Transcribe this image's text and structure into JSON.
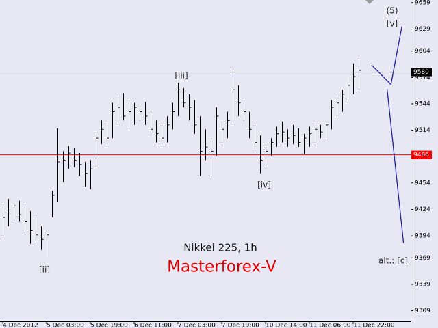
{
  "chart_data": {
    "type": "ohlc",
    "title": "Nikkei 225, 1h",
    "subtitle": "Masterforex-V",
    "annotations": [
      "[ii]",
      "[iii]",
      "[iv]",
      "(5)",
      "[v]",
      "alt.: [c]"
    ],
    "high": [
      9430,
      9436,
      9432,
      9434,
      9430,
      9422,
      9418,
      9405,
      9400,
      9445,
      9516,
      9490,
      9496,
      9494,
      9488,
      9478,
      9480,
      9512,
      9525,
      9522,
      9545,
      9552,
      9556,
      9548,
      9545,
      9542,
      9546,
      9535,
      9525,
      9520,
      9530,
      9545,
      9568,
      9562,
      9555,
      9548,
      9530,
      9515,
      9505,
      9540,
      9525,
      9535,
      9586,
      9565,
      9548,
      9535,
      9520,
      9508,
      9495,
      9505,
      9518,
      9524,
      9515,
      9520,
      9516,
      9510,
      9518,
      9522,
      9520,
      9525,
      9548,
      9552,
      9560,
      9575,
      9590,
      9596
    ],
    "low": [
      9394,
      9405,
      9408,
      9410,
      9400,
      9385,
      9388,
      9378,
      9370,
      9415,
      9432,
      9455,
      9470,
      9472,
      9462,
      9450,
      9447,
      9472,
      9498,
      9495,
      9505,
      9520,
      9525,
      9515,
      9520,
      9525,
      9520,
      9508,
      9500,
      9495,
      9500,
      9515,
      9530,
      9540,
      9525,
      9510,
      9462,
      9480,
      9458,
      9485,
      9500,
      9505,
      9520,
      9530,
      9525,
      9505,
      9490,
      9465,
      9470,
      9485,
      9495,
      9500,
      9495,
      9498,
      9495,
      9487,
      9495,
      9500,
      9505,
      9505,
      9515,
      9530,
      9535,
      9545,
      9555,
      9560
    ],
    "close": [
      9415,
      9420,
      9428,
      9418,
      9410,
      9400,
      9395,
      9390,
      9395,
      9440,
      9478,
      9480,
      9488,
      9480,
      9475,
      9465,
      9470,
      9505,
      9515,
      9505,
      9535,
      9540,
      9530,
      9535,
      9540,
      9535,
      9530,
      9515,
      9510,
      9505,
      9520,
      9535,
      9560,
      9545,
      9540,
      9520,
      9490,
      9495,
      9490,
      9530,
      9515,
      9525,
      9560,
      9545,
      9535,
      9515,
      9500,
      9480,
      9490,
      9500,
      9510,
      9512,
      9505,
      9508,
      9500,
      9505,
      9510,
      9515,
      9512,
      9520,
      9540,
      9545,
      9555,
      9565,
      9575,
      9582
    ],
    "color": "#000000",
    "projections": [
      {
        "color": "#20209a",
        "x": [
          67.4,
          70.9,
          72.9
        ],
        "values": [
          9588,
          9566,
          9632
        ]
      },
      {
        "color": "#20209a",
        "x": [
          70.2,
          73.2
        ],
        "values": [
          9561,
          9386
        ]
      }
    ],
    "hlines": [
      {
        "value": 9486,
        "color": "#ff0000"
      },
      {
        "value": 9580,
        "color": "#a0a0a0"
      }
    ],
    "xlim": [
      -0.5,
      74.5
    ],
    "xticks": [
      {
        "value": 0,
        "label": "4 Dec 2012"
      },
      {
        "value": 8,
        "label": "5 Dec 03:00"
      },
      {
        "value": 16,
        "label": "5 Dec 19:00"
      },
      {
        "value": 24,
        "label": "6 Dec 11:00"
      },
      {
        "value": 32,
        "label": "7 Dec 03:00"
      },
      {
        "value": 40,
        "label": "7 Dec 19:00"
      },
      {
        "value": 48,
        "label": "10 Dec 14:00"
      },
      {
        "value": 56,
        "label": "11 Dec 06:00"
      },
      {
        "value": 64,
        "label": "11 Dec 22:00"
      }
    ],
    "ylim": [
      9297,
      9662
    ],
    "yticks": [
      9309,
      9339,
      9369,
      9394,
      9424,
      9454,
      9486,
      9514,
      9544,
      9574,
      9604,
      9629,
      9659
    ]
  }
}
